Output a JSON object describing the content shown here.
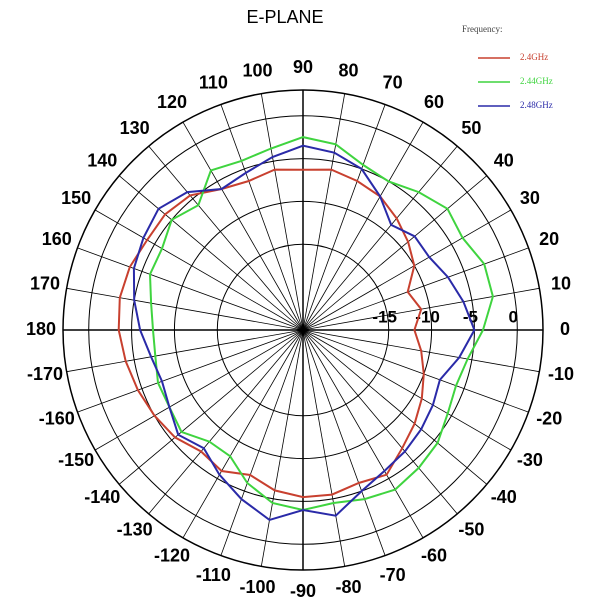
{
  "chart_data": {
    "type": "polar",
    "title": "E-PLANE",
    "legend_title": "Frequency:",
    "legend": "upper right",
    "theta": [
      0,
      10,
      20,
      30,
      40,
      50,
      60,
      70,
      80,
      90,
      100,
      110,
      120,
      130,
      140,
      150,
      160,
      170,
      180,
      -170,
      -160,
      -150,
      -140,
      -130,
      -120,
      -110,
      -100,
      -90,
      -80,
      -70,
      -60,
      -50,
      -40,
      -30,
      -20,
      -10
    ],
    "thetaticks": [
      0,
      10,
      20,
      30,
      40,
      50,
      60,
      70,
      80,
      90,
      100,
      110,
      120,
      130,
      140,
      150,
      160,
      170,
      180,
      -170,
      -160,
      -150,
      -140,
      -130,
      -120,
      -110,
      -100,
      -90,
      -80,
      -70,
      -60,
      -50,
      -40,
      -30,
      -20,
      -10
    ],
    "rlim": [
      -25,
      3
    ],
    "rticks": [
      -15,
      -10,
      -5,
      0
    ],
    "series": [
      {
        "name": "2.4GHz",
        "color": "#c8402f",
        "values": [
          -12,
          -11,
          -12,
          -10,
          -9,
          -8,
          -7,
          -6.5,
          -6,
          -6.3,
          -6,
          -6.5,
          -6,
          -4.5,
          -4,
          -4,
          -3.5,
          -3.3,
          -3.5,
          -4,
          -4.5,
          -5,
          -5.5,
          -6.5,
          -6,
          -7,
          -6,
          -5.5,
          -5.5,
          -6,
          -5.5,
          -7,
          -8,
          -9,
          -10,
          -11
        ]
      },
      {
        "name": "2.44GHz",
        "color": "#3fd43f",
        "values": [
          -4,
          -2.5,
          -2.5,
          -3.5,
          -3,
          -4,
          -5,
          -4.5,
          -3,
          -2.5,
          -3.5,
          -4,
          -3.5,
          -6,
          -5,
          -6,
          -6,
          -7,
          -7.5,
          -7.5,
          -7,
          -7,
          -6.5,
          -8,
          -8,
          -6,
          -4.5,
          -4,
          -4.5,
          -4,
          -3.5,
          -4,
          -4.5,
          -5.5,
          -6,
          -5.5
        ]
      },
      {
        "name": "2.48GHz",
        "color": "#2a2aa8",
        "values": [
          -5,
          -6,
          -7,
          -8,
          -8,
          -9,
          -7,
          -5,
          -4,
          -3.5,
          -4.5,
          -5.5,
          -6,
          -4,
          -3,
          -3.5,
          -4,
          -5,
          -6,
          -7,
          -7.5,
          -7,
          -6,
          -7,
          -5.5,
          -4,
          -2.5,
          -4,
          -3,
          -5,
          -6,
          -6.5,
          -7,
          -7.5,
          -8,
          -6.5
        ]
      }
    ]
  }
}
